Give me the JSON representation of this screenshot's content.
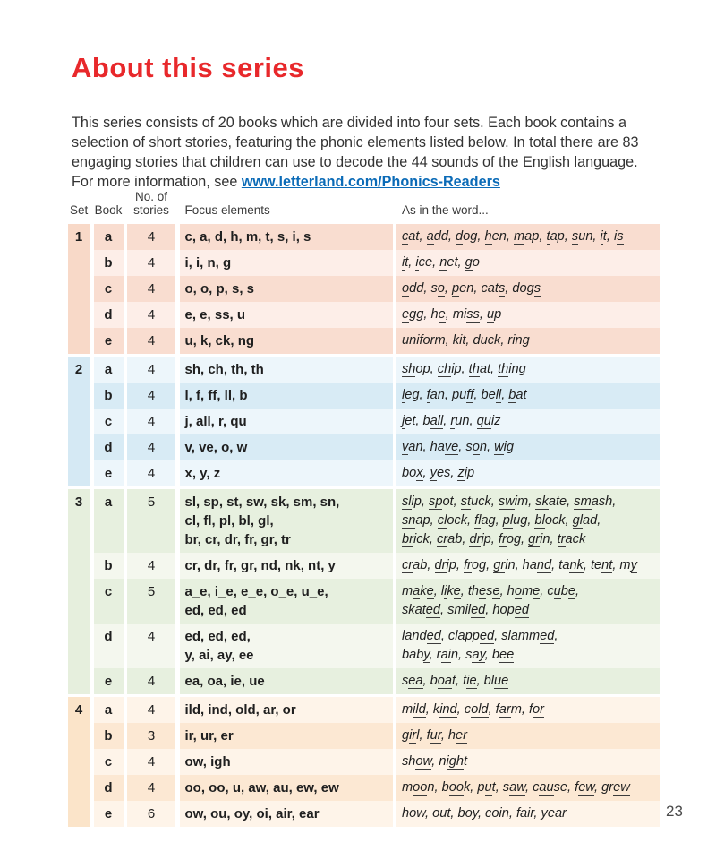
{
  "page": {
    "title": "About this series",
    "title_color": "#e8282b",
    "intro_text": "This series consists of 20 books which are divided into four sets. Each book contains a selection of short stories, featuring the phonic elements listed below. In total there are 83 engaging stories that children can use to decode the 44 sounds of the English language. For more information, see ",
    "link_text": "www.letterland.com/Phonics-Readers",
    "link_color": "#0b6bb7",
    "page_number": "23"
  },
  "table": {
    "headers": {
      "set": "Set",
      "book": "Book",
      "stories_line1": "No. of",
      "stories_line2": "stories",
      "focus": "Focus elements",
      "words": "As in the word..."
    },
    "sets": [
      {
        "set": "1",
        "colors": {
          "dark": "#f9ddd0",
          "light": "#fdeee8",
          "band": "#f8d9c8"
        },
        "rows": [
          {
            "book": "a",
            "stories": "4",
            "shade": "dark",
            "focus": [
              "c, a, d, h, m, t, s, i, s"
            ],
            "words": [
              "[c]at, [a]dd, [d]og, [h]en, [m]ap, [t]ap, [s]un, [i]t, i[s]"
            ]
          },
          {
            "book": "b",
            "stories": "4",
            "shade": "light",
            "focus": [
              "i, i, n, g"
            ],
            "words": [
              "[i]t, [i]ce, [n]et, [g]o"
            ]
          },
          {
            "book": "c",
            "stories": "4",
            "shade": "dark",
            "focus": [
              "o, o, p, s, s"
            ],
            "words": [
              "[o]dd, s[o], [p]en, cat[s], dog[s]"
            ]
          },
          {
            "book": "d",
            "stories": "4",
            "shade": "light",
            "focus": [
              "e, e, ss, u"
            ],
            "words": [
              "[e]gg, h[e], mi[ss], [u]p"
            ]
          },
          {
            "book": "e",
            "stories": "4",
            "shade": "dark",
            "focus": [
              "u, k, ck, ng"
            ],
            "words": [
              "[u]niform, [k]it, du[ck], ri[ng]"
            ]
          }
        ]
      },
      {
        "set": "2",
        "colors": {
          "dark": "#d8ebf5",
          "light": "#edf6fb",
          "band": "#d5e9f4"
        },
        "rows": [
          {
            "book": "a",
            "stories": "4",
            "shade": "light",
            "focus": [
              "sh, ch, th, th"
            ],
            "words": [
              "[sh]op, [ch]ip, [th]at, [th]ing"
            ]
          },
          {
            "book": "b",
            "stories": "4",
            "shade": "dark",
            "focus": [
              "l, f, ff, ll, b"
            ],
            "words": [
              "[l]eg, [f]an, pu[ff], be[ll], [b]at"
            ]
          },
          {
            "book": "c",
            "stories": "4",
            "shade": "light",
            "focus": [
              "j, all, r, qu"
            ],
            "words": [
              "[j]et, b[all], [r]un, [qu]iz"
            ]
          },
          {
            "book": "d",
            "stories": "4",
            "shade": "dark",
            "focus": [
              "v, ve, o, w"
            ],
            "words": [
              "[v]an, ha[ve], s[o]n, [w]ig"
            ]
          },
          {
            "book": "e",
            "stories": "4",
            "shade": "light",
            "focus": [
              "x, y, z"
            ],
            "words": [
              "bo[x], [y]es, [z]ip"
            ]
          }
        ]
      },
      {
        "set": "3",
        "colors": {
          "dark": "#e7f0df",
          "light": "#f4f7ee",
          "band": "#e6efdd"
        },
        "rows": [
          {
            "book": "a",
            "stories": "5",
            "shade": "dark",
            "focus": [
              "sl, sp, st, sw, sk, sm, sn,",
              "cl, fl, pl, bl, gl,",
              "br, cr, dr, fr, gr, tr"
            ],
            "words": [
              "[sl]ip, [sp]ot, [st]uck, [sw]im, [sk]ate, [sm]ash,",
              "[sn]ap, [cl]ock, [fl]ag, [pl]ug, [bl]ock, [gl]ad,",
              "[br]ick, [cr]ab, [dr]ip, [fr]og, [gr]in, [tr]ack"
            ]
          },
          {
            "book": "b",
            "stories": "4",
            "shade": "light",
            "focus": [
              "cr, dr, fr, gr, nd, nk, nt, y"
            ],
            "words": [
              "[cr]ab, [dr]ip, [fr]og, [gr]in, ha[nd], ta[nk], te[nt], m[y]"
            ]
          },
          {
            "book": "c",
            "stories": "5",
            "shade": "dark",
            "focus": [
              "a_e, i_e, e_e, o_e, u_e,",
              "ed, ed, ed"
            ],
            "words": [
              "m[a]k[e], l[i]k[e], th[e]s[e], h[o]m[e], c[u]b[e],",
              "skat[ed], smil[ed], hop[ed]"
            ]
          },
          {
            "book": "d",
            "stories": "4",
            "shade": "light",
            "focus": [
              "ed, ed, ed,",
              "y, ai, ay, ee"
            ],
            "words": [
              "land[ed], clapp[ed], slamm[ed],",
              "bab[y], r[ai]n, s[ay], b[ee]"
            ]
          },
          {
            "book": "e",
            "stories": "4",
            "shade": "dark",
            "focus": [
              "ea, oa, ie, ue"
            ],
            "words": [
              "s[ea], b[oa]t, t[ie], bl[ue]"
            ]
          }
        ]
      },
      {
        "set": "4",
        "colors": {
          "dark": "#fce8d3",
          "light": "#fef4e9",
          "band": "#fbe4c9"
        },
        "rows": [
          {
            "book": "a",
            "stories": "4",
            "shade": "light",
            "focus": [
              "ild, ind, old, ar, or"
            ],
            "words": [
              "m[ild], k[ind], c[old], f[ar]m, f[or]"
            ]
          },
          {
            "book": "b",
            "stories": "3",
            "shade": "dark",
            "focus": [
              "ir, ur, er"
            ],
            "words": [
              "g[ir]l, f[ur], h[er]"
            ]
          },
          {
            "book": "c",
            "stories": "4",
            "shade": "light",
            "focus": [
              "ow, igh"
            ],
            "words": [
              "sh[ow], n[igh]t"
            ]
          },
          {
            "book": "d",
            "stories": "4",
            "shade": "dark",
            "focus": [
              "oo, oo, u, aw, au, ew, ew"
            ],
            "words": [
              "m[oo]n, b[oo]k, p[u]t, s[aw], c[au]se, f[ew], gr[ew]"
            ]
          },
          {
            "book": "e",
            "stories": "6",
            "shade": "light",
            "focus": [
              "ow, ou, oy, oi, air, ear"
            ],
            "words": [
              "h[ow], [ou]t, b[oy], c[oi]n, f[air], y[ear]"
            ]
          }
        ]
      }
    ]
  }
}
